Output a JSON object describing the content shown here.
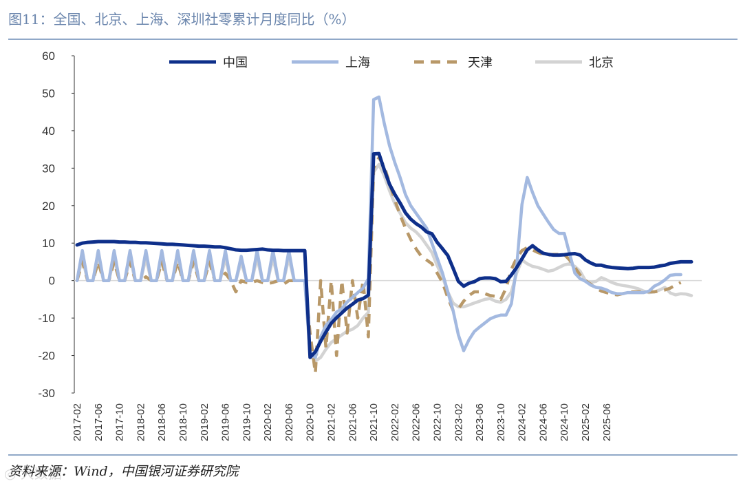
{
  "header": {
    "title": "图11：全国、北京、上海、深圳社零累计月度同比（%）"
  },
  "footer": {
    "source": "资料来源：Wind，中国银河证券研究院",
    "watermark": "◎ 大数据"
  },
  "colors": {
    "china": "#0e2f8a",
    "shanghai": "#a3b9e0",
    "tianjin": "#b89868",
    "beijing": "#d3d3d3"
  },
  "chart_data": {
    "type": "line",
    "title": "全国、北京、上海、深圳社零累计月度同比（%）",
    "xlabel": "",
    "ylabel": "",
    "ylim": [
      -30,
      60
    ],
    "yticks": [
      "60",
      "50",
      "40",
      "30",
      "20",
      "10",
      "0",
      "-10",
      "-20",
      "-30"
    ],
    "xticks": [
      "2017-02",
      "2017-06",
      "2017-10",
      "2018-02",
      "2018-06",
      "2018-10",
      "2019-02",
      "2019-06",
      "2019-10",
      "2020-02",
      "2020-06",
      "2020-10",
      "2021-02",
      "2021-06",
      "2021-10",
      "2022-02",
      "2022-06",
      "2022-10",
      "2023-02",
      "2023-06",
      "2023-10",
      "2024-02",
      "2024-06",
      "2024-10",
      "2025-02",
      "2025-06"
    ],
    "legend_position": "top",
    "series": [
      {
        "name": "中国",
        "key": "china",
        "style": "solid",
        "values": [
          9.5,
          10,
          10.2,
          10.3,
          10.4,
          10.4,
          10.4,
          10.4,
          10.3,
          10.3,
          10.2,
          10.2,
          10.1,
          10.1,
          10,
          9.9,
          9.8,
          9.7,
          9.7,
          9.6,
          9.5,
          9.4,
          9.3,
          9.2,
          9.2,
          9.1,
          9,
          9,
          8.8,
          8.5,
          8.2,
          8.1,
          8.1,
          8.2,
          8.3,
          8.4,
          8.2,
          8.1,
          8.1,
          8,
          8,
          8,
          8,
          8,
          -20.5,
          -19,
          -16.2,
          -13.7,
          -11.4,
          -9.9,
          -8.6,
          -7.3,
          -6.3,
          -5.2,
          -4.8,
          -3.9,
          33.8,
          33.9,
          29.6,
          25.7,
          23,
          20.7,
          18.1,
          16.4,
          15.2,
          14.3,
          13,
          12.5,
          10.2,
          8.5,
          6.7,
          3.3,
          -0.2,
          -1.5,
          -0.7,
          -0.3,
          0.5,
          0.7,
          0.7,
          0.5,
          -0.3,
          -0.2,
          1.5,
          3.5,
          5.8,
          8.2,
          9.3,
          8.2,
          7.3,
          7,
          6.8,
          6.8,
          6.9,
          7.1,
          7.2,
          6.8,
          5.5,
          4.7,
          4.1,
          4.1,
          3.7,
          3.5,
          3.4,
          3.3,
          3.2,
          3.3,
          3.5,
          3.5,
          3.5,
          3.6,
          3.9,
          4.1,
          4.6,
          4.8,
          5,
          5,
          5
        ]
      },
      {
        "name": "上海",
        "key": "shanghai",
        "style": "solid",
        "values": [
          0,
          8,
          0,
          0,
          8,
          0,
          0,
          8,
          0,
          0,
          8,
          0,
          0,
          8,
          0,
          0,
          8,
          0,
          0,
          8,
          0,
          0,
          8,
          0,
          0,
          8,
          0,
          0,
          8,
          0,
          0,
          6.5,
          0,
          0,
          8,
          0,
          0,
          8,
          0,
          0,
          8,
          0,
          0,
          0,
          -19.4,
          -20.5,
          -15,
          -12,
          -10.4,
          -8.4,
          -7.5,
          -5.7,
          -4.5,
          -3.2,
          -2,
          0.5,
          48.3,
          49,
          42,
          36,
          31.5,
          27.5,
          23,
          20,
          18,
          16,
          14,
          10,
          6,
          2,
          -3,
          -8,
          -14.5,
          -18.7,
          -15.8,
          -13.6,
          -12.4,
          -11.3,
          -10.2,
          -9.6,
          -9.2,
          -9.2,
          -6.2,
          3.6,
          20.3,
          27.5,
          23.5,
          20,
          17.8,
          15.6,
          13.6,
          12.6,
          12.6,
          7.2,
          2,
          0.5,
          -0.2,
          -1.2,
          -1.8,
          -2,
          -2.5,
          -3.2,
          -3.5,
          -3.5,
          -3.2,
          -3.2,
          -3.2,
          -3.2,
          -2.8,
          -1.5,
          -0.8,
          0.2,
          1.4,
          1.6,
          1.6
        ]
      },
      {
        "name": "天津",
        "key": "tianjin",
        "style": "dashed",
        "values": [
          0,
          5,
          0,
          0,
          5,
          0,
          0,
          5,
          0,
          0,
          5,
          0,
          0,
          1,
          0,
          0,
          5,
          0,
          0,
          5,
          0,
          0,
          5,
          0,
          0,
          5,
          0,
          0,
          2,
          0,
          -3,
          0,
          -0.5,
          -0.5,
          0,
          -0.5,
          -0.8,
          -0.5,
          0,
          -1,
          0,
          0,
          0,
          0,
          -14,
          -24.7,
          0,
          -18,
          0,
          -20,
          0,
          -14,
          0,
          -10,
          0,
          -15,
          30,
          32.8,
          30.5,
          26,
          21.5,
          17.5,
          14,
          11,
          8.5,
          6.5,
          5.5,
          4.5,
          2,
          -0.5,
          -4.5,
          -8,
          -7.5,
          -5.5,
          -4,
          -3,
          -3,
          -3.5,
          -4,
          -4.2,
          -5,
          -2,
          3,
          6,
          8,
          8.8,
          8.2,
          7.5,
          7,
          6.8,
          7,
          7,
          7,
          5.5,
          3.5,
          1.5,
          0,
          -1,
          -2,
          -2.8,
          -3.2,
          -3.6,
          -3.8,
          -3.5,
          -3.2,
          -3,
          -3,
          -3,
          -3,
          -3,
          -2.8,
          -2.5,
          -2,
          -1.2,
          -0.5
        ]
      },
      {
        "name": "北京",
        "key": "beijing",
        "style": "solid",
        "values": [
          0,
          6,
          0,
          0,
          6,
          0,
          0,
          6,
          0,
          0,
          6,
          0,
          0,
          6,
          0,
          0,
          6,
          0,
          0,
          6,
          0,
          0,
          6,
          0,
          0,
          6,
          0,
          0,
          6,
          0,
          0,
          5,
          0,
          0,
          6,
          0,
          0,
          6,
          0,
          0,
          6,
          0,
          0,
          0,
          -20,
          -21.5,
          -20.5,
          -18.3,
          -16.5,
          -15.5,
          -14.5,
          -13.5,
          -13,
          -12,
          -10,
          -8.5,
          29,
          31,
          28,
          24,
          20.5,
          18,
          15.5,
          14,
          13,
          11.5,
          9.5,
          7.5,
          4,
          1,
          -3,
          -6,
          -7,
          -7,
          -6.5,
          -6,
          -5.5,
          -5,
          -4.8,
          -5.5,
          -5.8,
          -5,
          -3,
          2,
          5.5,
          4.5,
          3.8,
          3.5,
          3,
          2.5,
          2.8,
          3.5,
          4.2,
          4.5,
          3.8,
          2.5,
          0,
          -0.5,
          -0.2,
          0.8,
          0.2,
          -0.5,
          -1,
          -1.3,
          -1.5,
          -1.8,
          -2.2,
          -2.8,
          -3.2,
          -3,
          -2.5,
          -1.8,
          -3.3,
          -3.8,
          -3.5,
          -3.6,
          -4
        ]
      }
    ]
  }
}
